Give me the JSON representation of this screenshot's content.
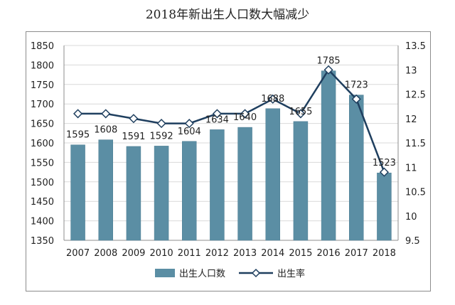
{
  "chart_data": {
    "type": "bar",
    "title": "2018年新出生人口数大幅减少",
    "categories": [
      "2007",
      "2008",
      "2009",
      "2010",
      "2011",
      "2012",
      "2013",
      "2014",
      "2015",
      "2016",
      "2017",
      "2018"
    ],
    "series": [
      {
        "name": "出生人口数",
        "kind": "bar",
        "axis": "left",
        "values": [
          1595,
          1608,
          1591,
          1592,
          1604,
          1634,
          1640,
          1688,
          1655,
          1785,
          1723,
          1523
        ],
        "labels": [
          "1595",
          "1608",
          "1591",
          "1592",
          "1604",
          "1634",
          "1640",
          "1688",
          "1655",
          "1785",
          "1723",
          "1523"
        ]
      },
      {
        "name": "出生率",
        "kind": "line",
        "axis": "right",
        "values": [
          12.1,
          12.1,
          12.0,
          11.9,
          11.9,
          12.1,
          12.1,
          12.4,
          12.1,
          13.0,
          12.4,
          10.9
        ]
      }
    ],
    "y_left": {
      "min": 1350,
      "max": 1850,
      "step": 50,
      "ticks": [
        "1350",
        "1400",
        "1450",
        "1500",
        "1550",
        "1600",
        "1650",
        "1700",
        "1750",
        "1800",
        "1850"
      ]
    },
    "y_right": {
      "min": 9.5,
      "max": 13.5,
      "step": 0.5,
      "ticks": [
        "9.5",
        "10",
        "10.5",
        "11",
        "11.5",
        "12",
        "12.5",
        "13",
        "13.5"
      ]
    },
    "grid": true,
    "legend_position": "bottom",
    "colors": {
      "bar": "#5b8ea4",
      "bar_edge": "#4e7e93",
      "line": "#1f3f5f",
      "grid": "#d9d9d9",
      "axis": "#8c8c8c"
    }
  }
}
